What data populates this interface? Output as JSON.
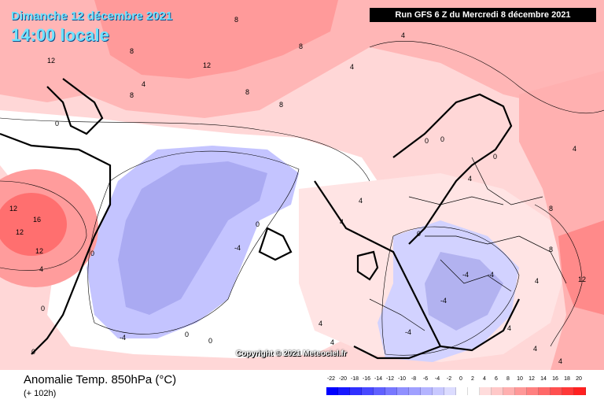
{
  "header": {
    "date": "Dimanche 12 décembre 2021",
    "time": "14:00 locale",
    "run": "Run GFS 6 Z du Mercredi 8 décembre 2021"
  },
  "footer": {
    "variable": "Anomalie Temp. 850hPa (°C)",
    "lead_time": "(+ 102h)",
    "copyright": "Copyright © 2021 Meteociel.fr"
  },
  "legend": {
    "ticks": [
      "-22",
      "-20",
      "-18",
      "-16",
      "-14",
      "-12",
      "-10",
      "-8",
      "-6",
      "-4",
      "-2",
      "0",
      "2",
      "4",
      "6",
      "8",
      "10",
      "12",
      "14",
      "16",
      "18",
      "20"
    ],
    "colors": [
      "#0000ff",
      "#1818ff",
      "#3030ff",
      "#4848ff",
      "#6060ff",
      "#7878ff",
      "#9090ff",
      "#a0a0ff",
      "#b4b4ff",
      "#c8c8ff",
      "#dcdcff",
      "#ffffff",
      "#ffffff",
      "#ffdcdc",
      "#ffc8c8",
      "#ffb0b0",
      "#ff9898",
      "#ff8080",
      "#ff6868",
      "#ff5050",
      "#ff3838",
      "#ff2020"
    ]
  },
  "contour_labels": {
    "greenland": [
      "8",
      "8",
      "8",
      "12",
      "12",
      "8",
      "4",
      "4",
      "4",
      "8",
      "8"
    ],
    "atlantic": [
      "0",
      "0",
      "-4",
      "-4",
      "0",
      "0",
      "4",
      "4",
      "0",
      "0"
    ],
    "canada": [
      "12",
      "16",
      "12",
      "12",
      "4",
      "0"
    ],
    "europe": [
      "4",
      "4",
      "0",
      "0",
      "-4",
      "-4",
      "-4",
      "-4",
      "4",
      "4",
      "8",
      "12",
      "4",
      "0",
      "0",
      "4",
      "8",
      "4",
      "4"
    ]
  }
}
